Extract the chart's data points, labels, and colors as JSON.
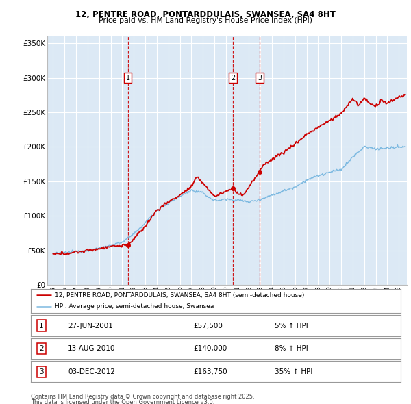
{
  "title": "12, PENTRE ROAD, PONTARDDULAIS, SWANSEA, SA4 8HT",
  "subtitle": "Price paid vs. HM Land Registry's House Price Index (HPI)",
  "hpi_label": "HPI: Average price, semi-detached house, Swansea",
  "property_label": "12, PENTRE ROAD, PONTARDDULAIS, SWANSEA, SA4 8HT (semi-detached house)",
  "footer_line1": "Contains HM Land Registry data © Crown copyright and database right 2025.",
  "footer_line2": "This data is licensed under the Open Government Licence v3.0.",
  "sales": [
    {
      "date_num": 2001.49,
      "price": 57500,
      "label": "1",
      "date_str": "27-JUN-2001",
      "pct": "5% ↑ HPI"
    },
    {
      "date_num": 2010.62,
      "price": 140000,
      "label": "2",
      "date_str": "13-AUG-2010",
      "pct": "8% ↑ HPI"
    },
    {
      "date_num": 2012.92,
      "price": 163750,
      "label": "3",
      "date_str": "03-DEC-2012",
      "pct": "35% ↑ HPI"
    }
  ],
  "hpi_color": "#7ab8e0",
  "price_color": "#cc0000",
  "dashed_color": "#cc0000",
  "plot_bg": "#dce9f5",
  "ylim": [
    0,
    360000
  ],
  "yticks": [
    0,
    50000,
    100000,
    150000,
    200000,
    250000,
    300000,
    350000
  ],
  "xlim_min": 1994.5,
  "xlim_max": 2025.7,
  "xticks": [
    1995,
    1996,
    1997,
    1998,
    1999,
    2000,
    2001,
    2002,
    2003,
    2004,
    2005,
    2006,
    2007,
    2008,
    2009,
    2010,
    2011,
    2012,
    2013,
    2014,
    2015,
    2016,
    2017,
    2018,
    2019,
    2020,
    2021,
    2022,
    2023,
    2024,
    2025
  ],
  "hpi_keypoints": [
    [
      1995.0,
      45000
    ],
    [
      1996.0,
      46500
    ],
    [
      1997.0,
      48000
    ],
    [
      1998.0,
      50000
    ],
    [
      1999.0,
      53000
    ],
    [
      2000.0,
      57000
    ],
    [
      2001.0,
      62000
    ],
    [
      2002.0,
      73000
    ],
    [
      2003.0,
      90000
    ],
    [
      2004.0,
      108000
    ],
    [
      2005.0,
      118000
    ],
    [
      2006.0,
      128000
    ],
    [
      2007.0,
      137000
    ],
    [
      2008.0,
      133000
    ],
    [
      2009.0,
      122000
    ],
    [
      2010.0,
      124000
    ],
    [
      2011.0,
      123000
    ],
    [
      2012.0,
      120000
    ],
    [
      2013.0,
      124000
    ],
    [
      2014.0,
      130000
    ],
    [
      2015.0,
      136000
    ],
    [
      2016.0,
      142000
    ],
    [
      2017.0,
      152000
    ],
    [
      2018.0,
      158000
    ],
    [
      2019.0,
      163000
    ],
    [
      2020.0,
      167000
    ],
    [
      2021.0,
      185000
    ],
    [
      2022.0,
      200000
    ],
    [
      2023.0,
      197000
    ],
    [
      2024.0,
      198000
    ],
    [
      2025.5,
      200000
    ]
  ],
  "price_keypoints": [
    [
      1995.0,
      44000
    ],
    [
      1996.0,
      45500
    ],
    [
      1997.0,
      47500
    ],
    [
      1998.0,
      49500
    ],
    [
      1999.0,
      52500
    ],
    [
      2000.0,
      56000
    ],
    [
      2001.49,
      57500
    ],
    [
      2002.0,
      66000
    ],
    [
      2003.0,
      85000
    ],
    [
      2004.0,
      108000
    ],
    [
      2005.0,
      120000
    ],
    [
      2006.0,
      130000
    ],
    [
      2007.0,
      142000
    ],
    [
      2007.5,
      156000
    ],
    [
      2008.0,
      148000
    ],
    [
      2009.0,
      128000
    ],
    [
      2010.62,
      140000
    ],
    [
      2011.0,
      133000
    ],
    [
      2011.5,
      130000
    ],
    [
      2012.92,
      163750
    ],
    [
      2013.3,
      175000
    ],
    [
      2014.0,
      182000
    ],
    [
      2015.0,
      192000
    ],
    [
      2016.0,
      204000
    ],
    [
      2017.0,
      218000
    ],
    [
      2018.0,
      228000
    ],
    [
      2019.0,
      238000
    ],
    [
      2020.0,
      248000
    ],
    [
      2021.0,
      270000
    ],
    [
      2021.5,
      260000
    ],
    [
      2022.0,
      270000
    ],
    [
      2022.5,
      263000
    ],
    [
      2023.0,
      258000
    ],
    [
      2023.5,
      267000
    ],
    [
      2024.0,
      262000
    ],
    [
      2024.5,
      268000
    ],
    [
      2025.0,
      272000
    ],
    [
      2025.5,
      275000
    ]
  ]
}
